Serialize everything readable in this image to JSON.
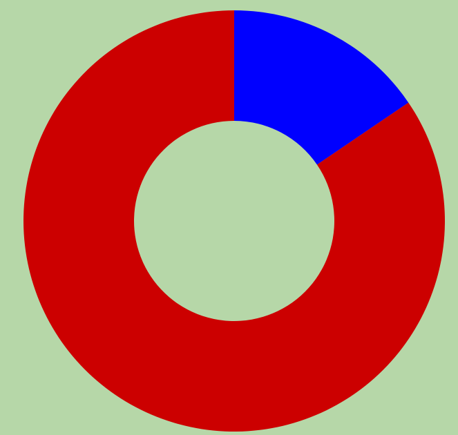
{
  "background_color": "#b6d7a8",
  "chart_data": {
    "type": "pie",
    "donut": true,
    "start_angle_deg": 0,
    "direction": "clockwise",
    "values": [
      15.5,
      84.5
    ],
    "colors": [
      "#0000ff",
      "#cc0000"
    ],
    "title": "",
    "legend": "none"
  }
}
